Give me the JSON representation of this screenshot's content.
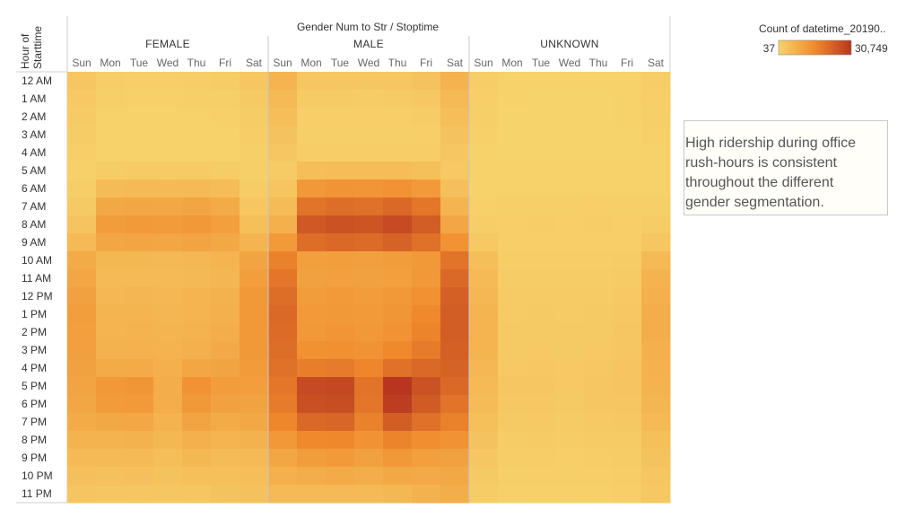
{
  "chart_data": {
    "type": "heatmap",
    "column_title": "Gender Num to Str  /  Stoptime",
    "row_title_lines": [
      "Hour of",
      "Starttime"
    ],
    "groups": [
      "FEMALE",
      "MALE",
      "UNKNOWN"
    ],
    "days": [
      "Sun",
      "Mon",
      "Tue",
      "Wed",
      "Thu",
      "Fri",
      "Sat"
    ],
    "hours": [
      "12 AM",
      "1 AM",
      "2 AM",
      "3 AM",
      "4 AM",
      "5 AM",
      "6 AM",
      "7 AM",
      "8 AM",
      "9 AM",
      "10 AM",
      "11 AM",
      "12 PM",
      "1 PM",
      "2 PM",
      "3 PM",
      "4 PM",
      "5 PM",
      "6 PM",
      "7 PM",
      "8 PM",
      "9 PM",
      "10 PM",
      "11 PM"
    ],
    "legend": {
      "title": "Count of datetime_20190..",
      "min_label": "37",
      "max_label": "30,749",
      "min": 37,
      "max": 30749,
      "color_low": "#f7d36b",
      "color_mid": "#f08a2c",
      "color_high": "#b8361f"
    },
    "values": {
      "FEMALE": [
        [
          2600,
          1200,
          1100,
          1100,
          1200,
          1500,
          2600
        ],
        [
          2200,
          800,
          700,
          700,
          800,
          900,
          1900
        ],
        [
          1800,
          500,
          500,
          500,
          500,
          600,
          1600
        ],
        [
          1400,
          400,
          400,
          400,
          400,
          400,
          1300
        ],
        [
          1000,
          500,
          500,
          500,
          500,
          500,
          900
        ],
        [
          700,
          1600,
          1700,
          1700,
          1700,
          1600,
          800
        ],
        [
          1200,
          5000,
          5300,
          5200,
          5300,
          4800,
          1600
        ],
        [
          2000,
          9000,
          9500,
          9200,
          9800,
          8500,
          2800
        ],
        [
          3200,
          11500,
          12000,
          11800,
          12500,
          11000,
          4200
        ],
        [
          5500,
          9500,
          9800,
          9500,
          10000,
          9000,
          6500
        ],
        [
          8500,
          5800,
          5800,
          5600,
          6000,
          6500,
          10000
        ],
        [
          9500,
          5500,
          5500,
          5300,
          5600,
          6200,
          11200
        ],
        [
          10500,
          6000,
          6200,
          6000,
          6300,
          7000,
          12200
        ],
        [
          11200,
          6300,
          6500,
          6200,
          6500,
          7500,
          12500
        ],
        [
          11000,
          6500,
          6800,
          6500,
          6800,
          8000,
          12500
        ],
        [
          10800,
          7000,
          7200,
          6800,
          7500,
          8800,
          12200
        ],
        [
          10500,
          8500,
          8500,
          7500,
          9500,
          10000,
          11800
        ],
        [
          10000,
          12500,
          12800,
          8000,
          13500,
          11500,
          11200
        ],
        [
          9500,
          11800,
          12000,
          7800,
          12500,
          10500,
          10200
        ],
        [
          8500,
          9000,
          9200,
          6800,
          10000,
          8500,
          9000
        ],
        [
          6800,
          6800,
          7000,
          5800,
          7500,
          6500,
          7000
        ],
        [
          5200,
          5200,
          5500,
          4500,
          5800,
          5000,
          5500
        ],
        [
          4000,
          3800,
          4000,
          3500,
          4200,
          4200,
          4500
        ],
        [
          3000,
          2500,
          2700,
          2500,
          2800,
          3500,
          3800
        ]
      ],
      "MALE": [
        [
          6500,
          2800,
          2600,
          2500,
          2700,
          3500,
          6800
        ],
        [
          5500,
          1800,
          1700,
          1600,
          1800,
          2300,
          5500
        ],
        [
          4500,
          1100,
          1100,
          1000,
          1100,
          1500,
          4500
        ],
        [
          3500,
          800,
          800,
          800,
          800,
          1100,
          3500
        ],
        [
          2500,
          1200,
          1200,
          1200,
          1200,
          1300,
          2500
        ],
        [
          1800,
          4500,
          4800,
          4800,
          4800,
          4300,
          2200
        ],
        [
          3000,
          12500,
          13200,
          13000,
          13500,
          12000,
          4000
        ],
        [
          5000,
          19500,
          20500,
          20000,
          21500,
          19000,
          6500
        ],
        [
          7500,
          24500,
          25500,
          25000,
          27000,
          23500,
          9500
        ],
        [
          12000,
          20500,
          21500,
          21000,
          22500,
          20000,
          13500
        ],
        [
          17000,
          11000,
          11200,
          10800,
          11500,
          12500,
          19500
        ],
        [
          19000,
          10500,
          10800,
          10500,
          11000,
          12500,
          21500
        ],
        [
          20500,
          11500,
          12000,
          11500,
          12200,
          14000,
          23000
        ],
        [
          21500,
          12000,
          12500,
          12000,
          12800,
          15500,
          23500
        ],
        [
          21000,
          12500,
          13000,
          12500,
          13500,
          16500,
          23500
        ],
        [
          20500,
          14000,
          14200,
          13500,
          15500,
          18000,
          23000
        ],
        [
          20000,
          17500,
          18000,
          16000,
          20000,
          21500,
          22500
        ],
        [
          19000,
          27000,
          27500,
          19500,
          30749,
          25500,
          21500
        ],
        [
          18000,
          26000,
          26500,
          19000,
          29500,
          24000,
          19500
        ],
        [
          16000,
          21500,
          22000,
          17000,
          23500,
          20000,
          17000
        ],
        [
          12500,
          15500,
          15800,
          13500,
          16500,
          14500,
          13500
        ],
        [
          9500,
          11500,
          12000,
          10500,
          12500,
          11000,
          10500
        ],
        [
          7500,
          8000,
          8500,
          8000,
          9000,
          8800,
          9000
        ],
        [
          5500,
          5200,
          5500,
          5300,
          5800,
          7000,
          8000
        ]
      ],
      "UNKNOWN": [
        [
          1200,
          250,
          220,
          200,
          230,
          350,
          1300
        ],
        [
          1000,
          150,
          130,
          120,
          140,
          250,
          1100
        ],
        [
          800,
          100,
          90,
          80,
          90,
          150,
          850
        ],
        [
          600,
          70,
          60,
          50,
          60,
          100,
          650
        ],
        [
          400,
          60,
          50,
          40,
          50,
          80,
          450
        ],
        [
          200,
          200,
          200,
          200,
          200,
          200,
          300
        ],
        [
          300,
          500,
          550,
          500,
          550,
          450,
          400
        ],
        [
          600,
          900,
          950,
          900,
          1000,
          850,
          800
        ],
        [
          1200,
          1100,
          1200,
          1100,
          1200,
          1000,
          1400
        ],
        [
          2200,
          1100,
          1100,
          1000,
          1100,
          1100,
          2600
        ],
        [
          4500,
          1300,
          1300,
          1200,
          1300,
          1500,
          5500
        ],
        [
          5500,
          1500,
          1500,
          1400,
          1500,
          1800,
          6800
        ],
        [
          6000,
          1700,
          1800,
          1700,
          1800,
          2100,
          7500
        ],
        [
          6500,
          1800,
          1900,
          1800,
          1900,
          2300,
          7800
        ],
        [
          6500,
          1900,
          2000,
          1900,
          2000,
          2500,
          7800
        ],
        [
          6300,
          2000,
          2100,
          2000,
          2200,
          2700,
          7500
        ],
        [
          6000,
          2200,
          2300,
          2100,
          2400,
          2900,
          7200
        ],
        [
          5500,
          2500,
          2600,
          2200,
          2700,
          3000,
          6800
        ],
        [
          5000,
          2300,
          2400,
          2000,
          2500,
          2800,
          6200
        ],
        [
          4200,
          2000,
          2100,
          1800,
          2100,
          2300,
          5200
        ],
        [
          3400,
          1600,
          1700,
          1500,
          1700,
          1800,
          4200
        ],
        [
          2600,
          1200,
          1300,
          1100,
          1300,
          1400,
          3400
        ],
        [
          2000,
          900,
          1000,
          900,
          1000,
          1200,
          2800
        ],
        [
          1500,
          600,
          700,
          600,
          700,
          1000,
          2400
        ]
      ]
    }
  },
  "annotation": "High ridership during office rush-hours is consistent throughout the different gender segmentation."
}
